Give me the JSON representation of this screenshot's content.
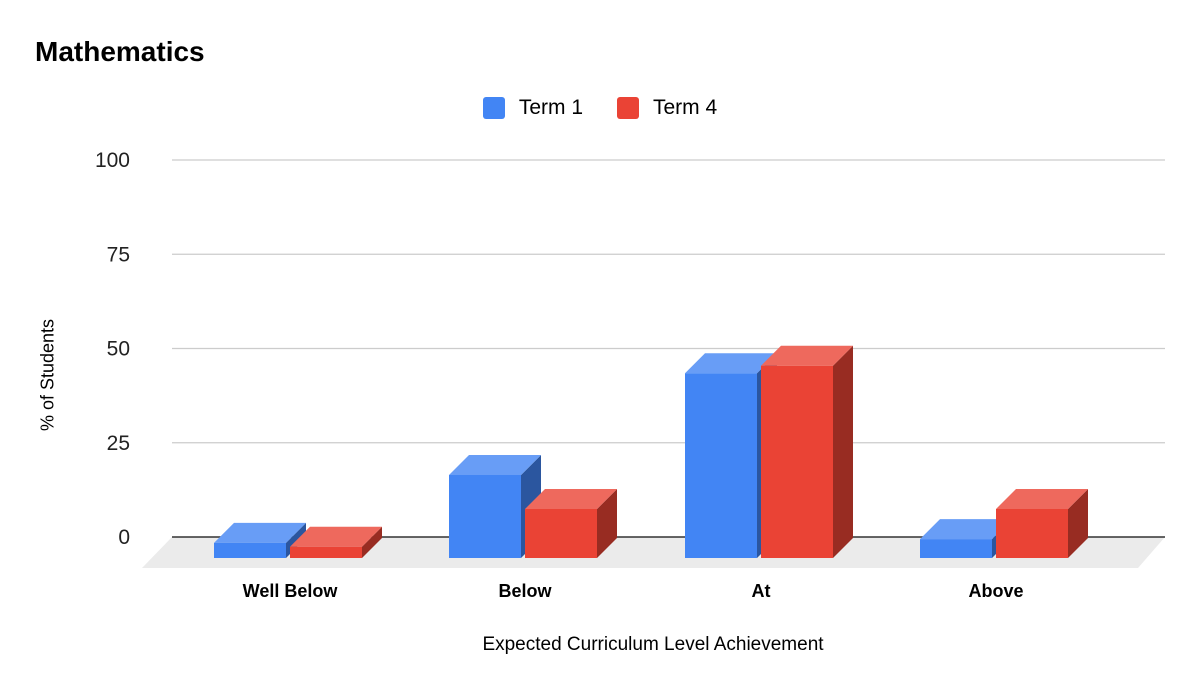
{
  "chart_data": {
    "type": "bar",
    "title": "Mathematics",
    "xlabel": "Expected Curriculum Level Achievement",
    "ylabel": "% of Students",
    "categories": [
      "Well Below",
      "Below",
      "At",
      "Above"
    ],
    "series": [
      {
        "name": "Term 1",
        "color": "#4285f4",
        "values": [
          4,
          22,
          49,
          5
        ]
      },
      {
        "name": "Term 4",
        "color": "#ea4335",
        "values": [
          3,
          13,
          51,
          13
        ]
      }
    ],
    "ylim": [
      0,
      100
    ],
    "yticks": [
      "0",
      "25",
      "50",
      "75",
      "100"
    ],
    "grid": true,
    "legend_position": "top-center",
    "style": "3d"
  }
}
